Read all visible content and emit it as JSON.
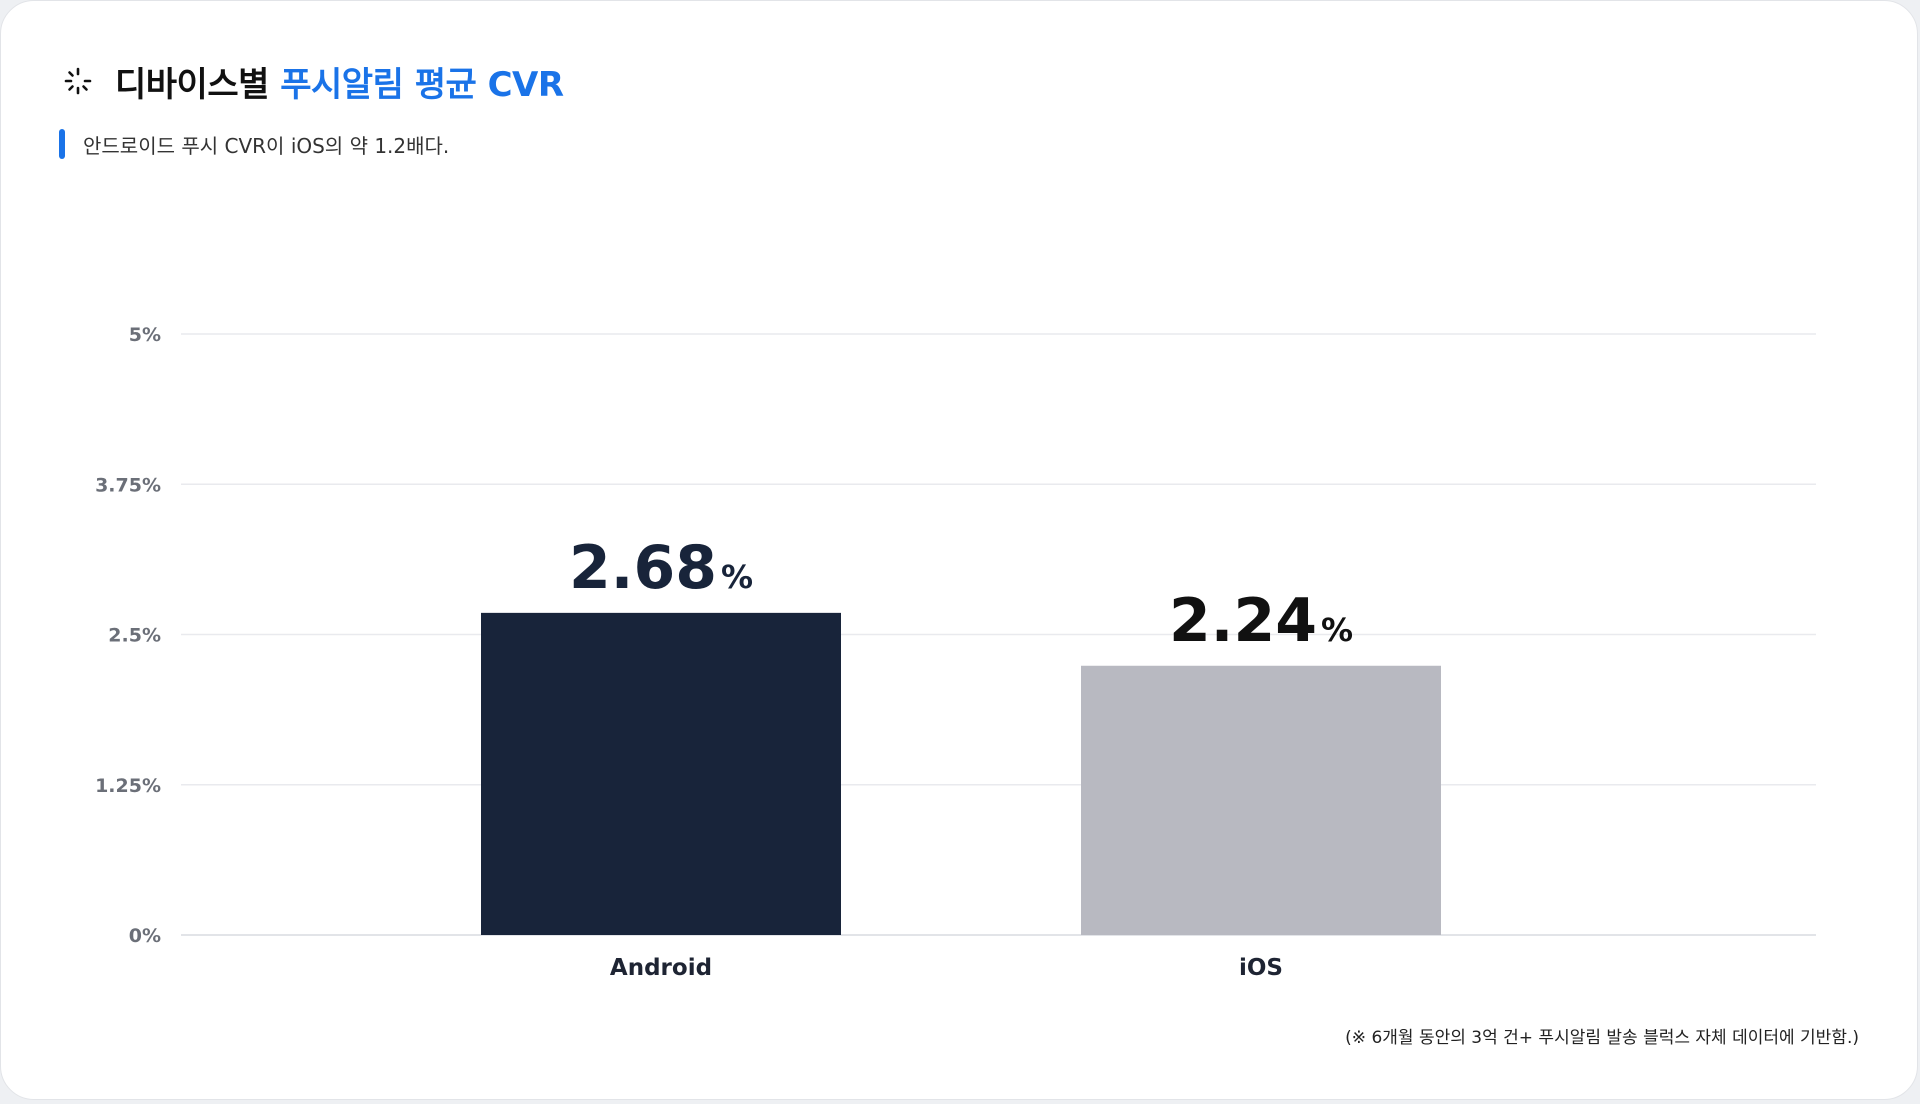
{
  "header": {
    "title_prefix": "디바이스별",
    "title_accent": "푸시알림 평균 CVR",
    "subtitle": "안드로이드 푸시 CVR이 iOS의 약 1.2배다."
  },
  "footnote": "(※ 6개월 동안의 3억 건+ 푸시알림 발송 블럭스 자체 데이터에 기반함.)",
  "colors": {
    "accent": "#1a73e8",
    "android_bar": "#18243a",
    "ios_bar": "#b8b9c1",
    "android_label": "#18243a",
    "ios_label": "#111111"
  },
  "chart_data": {
    "type": "bar",
    "categories": [
      "Android",
      "iOS"
    ],
    "values": [
      2.68,
      2.24
    ],
    "value_labels": [
      "2.68",
      "2.24"
    ],
    "value_unit": "%",
    "ylim": [
      0,
      5
    ],
    "yticks": [
      0,
      1.25,
      2.5,
      3.75,
      5
    ],
    "ytick_labels": [
      "0%",
      "1.25%",
      "2.5%",
      "3.75%",
      "5%"
    ],
    "grid": true,
    "xlabel": "",
    "ylabel": ""
  }
}
